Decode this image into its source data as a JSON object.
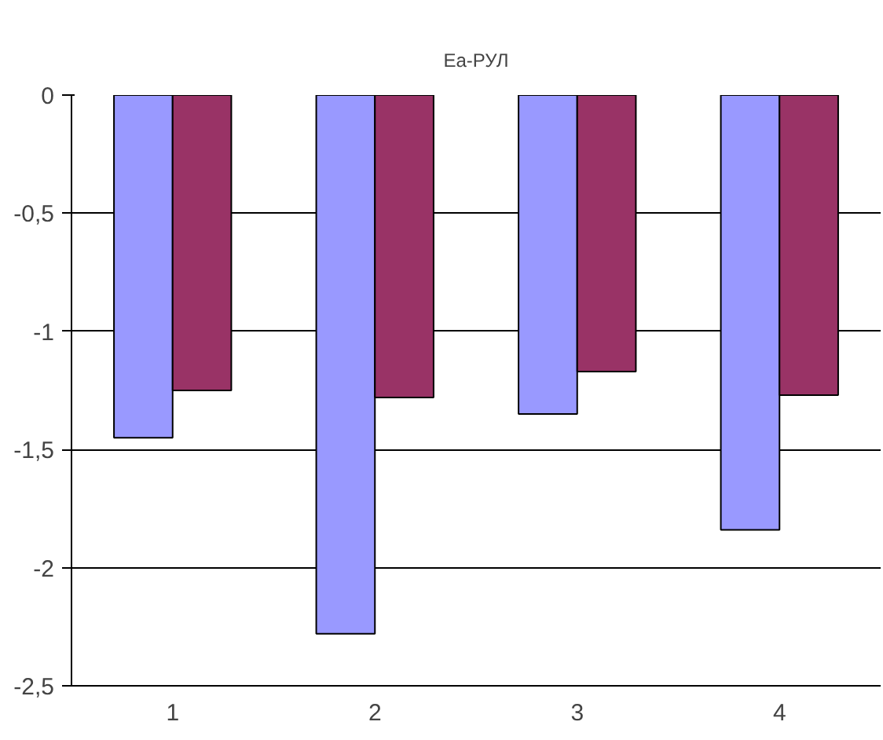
{
  "chart_data": {
    "type": "bar",
    "title": "Еа-РУЛ",
    "categories": [
      "1",
      "2",
      "3",
      "4"
    ],
    "series": [
      {
        "color": "#9999ff",
        "values": [
          -1.45,
          -2.28,
          -1.35,
          -1.84
        ]
      },
      {
        "color": "#993366",
        "values": [
          -1.25,
          -1.28,
          -1.17,
          -1.27
        ]
      }
    ],
    "ylim": [
      -2.5,
      0
    ],
    "yticks": [
      {
        "value": 0,
        "label": "0"
      },
      {
        "value": -0.5,
        "label": "-0,5"
      },
      {
        "value": -1,
        "label": "-1"
      },
      {
        "value": -1.5,
        "label": "-1,5"
      },
      {
        "value": -2,
        "label": "-2"
      },
      {
        "value": -2.5,
        "label": "-2,5"
      }
    ],
    "grid": "y"
  }
}
